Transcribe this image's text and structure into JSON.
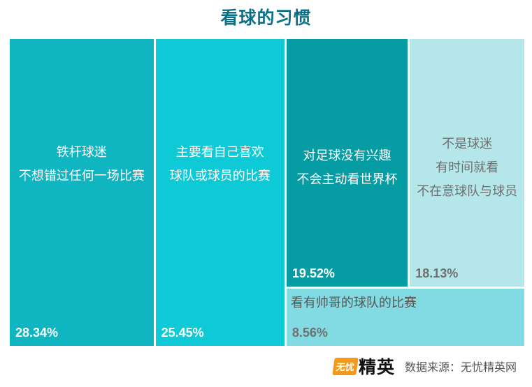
{
  "chart_data": {
    "type": "treemap",
    "title": "看球的习惯",
    "tiles": [
      {
        "label_lines": [
          "铁杆球迷",
          "不想错过任何一场比赛"
        ],
        "value": 28.34,
        "value_text": "28.34%",
        "color": "#0fb5c1",
        "label_color": "#ffffff",
        "value_color": "#ffffff"
      },
      {
        "label_lines": [
          "主要看自己喜欢",
          "球队或球员的比赛"
        ],
        "value": 25.45,
        "value_text": "25.45%",
        "color": "#0ecad6",
        "label_color": "#ffffff",
        "value_color": "#ffffff"
      },
      {
        "label_lines": [
          "对足球没有兴趣",
          "不会主动看世界杯"
        ],
        "value": 19.52,
        "value_text": "19.52%",
        "color": "#059ca3",
        "label_color": "#ffffff",
        "value_color": "#ffffff"
      },
      {
        "label_lines": [
          "不是球迷",
          "有时间就看",
          "不在意球队与球员"
        ],
        "value": 18.13,
        "value_text": "18.13%",
        "color": "#b4e6ea",
        "label_color": "#707070",
        "value_color": "#707070"
      },
      {
        "label_lines": [
          "看有帅哥的球队的比赛"
        ],
        "value": 8.56,
        "value_text": "8.56%",
        "color": "#82dbe2",
        "label_color": "#555555",
        "value_color": "#707070"
      }
    ]
  },
  "footer": {
    "logo_badge": "无忧",
    "logo_text": "精英",
    "source": "数据来源：无忧精英网"
  }
}
